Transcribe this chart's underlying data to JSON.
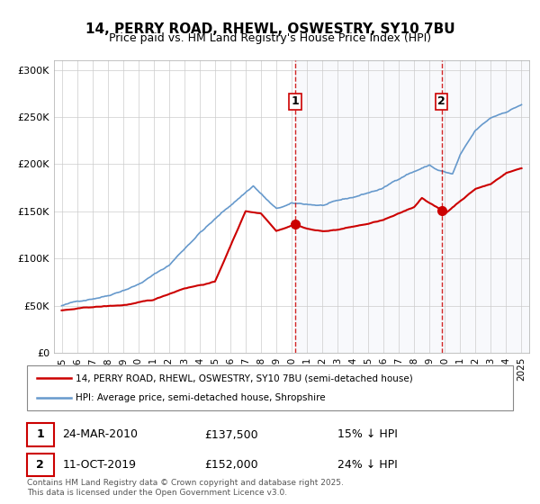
{
  "title": "14, PERRY ROAD, RHEWL, OSWESTRY, SY10 7BU",
  "subtitle": "Price paid vs. HM Land Registry's House Price Index (HPI)",
  "legend_property": "14, PERRY ROAD, RHEWL, OSWESTRY, SY10 7BU (semi-detached house)",
  "legend_hpi": "HPI: Average price, semi-detached house, Shropshire",
  "footer": "Contains HM Land Registry data © Crown copyright and database right 2025.\nThis data is licensed under the Open Government Licence v3.0.",
  "property_color": "#cc0000",
  "hpi_color": "#6699cc",
  "background_color": "#f0f4ff",
  "marker1": {
    "date_num": 2010.23,
    "value": 137500,
    "label": "1",
    "date_str": "24-MAR-2010",
    "price": "£137,500",
    "hpi_diff": "15% ↓ HPI"
  },
  "marker2": {
    "date_num": 2019.78,
    "value": 152000,
    "label": "2",
    "date_str": "11-OCT-2019",
    "price": "£152,000",
    "hpi_diff": "24% ↓ HPI"
  },
  "vline1_x": 2010.23,
  "vline2_x": 2019.78,
  "ylim": [
    0,
    310000
  ],
  "xlim_start": 1994.5,
  "xlim_end": 2025.5,
  "yticks": [
    0,
    50000,
    100000,
    150000,
    200000,
    250000,
    300000
  ],
  "ytick_labels": [
    "£0",
    "£50K",
    "£100K",
    "£150K",
    "£200K",
    "£250K",
    "£300K"
  ],
  "xticks": [
    1995,
    1996,
    1997,
    1998,
    1999,
    2000,
    2001,
    2002,
    2003,
    2004,
    2005,
    2006,
    2007,
    2008,
    2009,
    2010,
    2011,
    2012,
    2013,
    2014,
    2015,
    2016,
    2017,
    2018,
    2019,
    2020,
    2021,
    2022,
    2023,
    2024,
    2025
  ]
}
